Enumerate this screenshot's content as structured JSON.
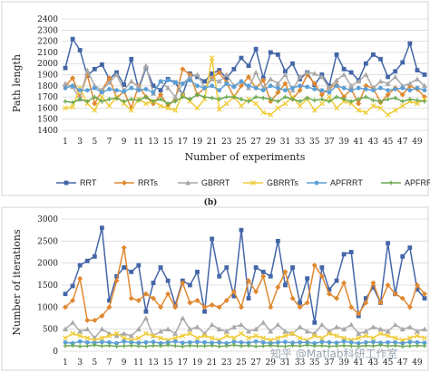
{
  "figure": {
    "caption": "(b)",
    "watermark": "知乎 @Matlab科研工作室"
  },
  "legend": {
    "entries": [
      {
        "name": "RRT",
        "color": "#4466a8",
        "marker": "square"
      },
      {
        "name": "RRTs",
        "color": "#e08830",
        "marker": "diamond"
      },
      {
        "name": "GBRRT",
        "color": "#a9a9a9",
        "marker": "triangle"
      },
      {
        "name": "GBRRTs",
        "color": "#f0cc3a",
        "marker": "x"
      },
      {
        "name": "APFRRT",
        "color": "#5b9fd6",
        "marker": "circle"
      },
      {
        "name": "APFRRTs",
        "color": "#6aa84f",
        "marker": "plus"
      }
    ]
  },
  "chart_data": [
    {
      "type": "line",
      "ylabel": "Path length",
      "xlabel": "Number of experiments",
      "ylim": [
        1400,
        2400
      ],
      "yticks": [
        1400,
        1500,
        1600,
        1700,
        1800,
        1900,
        2000,
        2100,
        2200,
        2300,
        2400
      ],
      "xlim": [
        1,
        50
      ],
      "xticks": [
        1,
        3,
        5,
        7,
        9,
        11,
        13,
        15,
        17,
        19,
        21,
        23,
        25,
        27,
        29,
        31,
        33,
        35,
        37,
        39,
        41,
        43,
        45,
        47,
        49
      ],
      "grid": "horizontal",
      "series": [
        {
          "name": "RRT",
          "values": [
            1960,
            2220,
            2120,
            1890,
            1950,
            1990,
            1860,
            1920,
            1810,
            2040,
            1770,
            1960,
            1800,
            1760,
            1860,
            1830,
            1720,
            1910,
            1880,
            1840,
            1910,
            1940,
            1870,
            1950,
            2050,
            1980,
            2130,
            1870,
            2100,
            2080,
            1930,
            2000,
            1860,
            1920,
            1810,
            1900,
            1800,
            2080,
            1950,
            1920,
            1850,
            2000,
            2080,
            2040,
            1880,
            1930,
            2010,
            2180,
            1940,
            1900
          ]
        },
        {
          "name": "RRTs",
          "values": [
            1800,
            1870,
            1700,
            1900,
            1640,
            1760,
            1870,
            1690,
            1750,
            1600,
            1800,
            1700,
            1640,
            1720,
            1620,
            1680,
            1950,
            1900,
            1720,
            1780,
            1870,
            1920,
            1830,
            1700,
            1800,
            1880,
            1780,
            1850,
            1660,
            1740,
            1820,
            1680,
            1760,
            1900,
            1820,
            1720,
            1780,
            1810,
            1700,
            1770,
            1640,
            1800,
            1780,
            1650,
            1720,
            1780,
            1720,
            1800,
            1770,
            1700
          ]
        },
        {
          "name": "GBRRT",
          "values": [
            1820,
            1790,
            1680,
            1940,
            1800,
            1760,
            1830,
            1900,
            1760,
            1840,
            1790,
            1980,
            1730,
            1840,
            1780,
            1700,
            1820,
            1880,
            1900,
            1780,
            1860,
            1840,
            1900,
            1800,
            1840,
            1780,
            1920,
            1780,
            1860,
            1820,
            1900,
            1760,
            1880,
            1920,
            1910,
            1880,
            1780,
            1850,
            1900,
            1800,
            1840,
            1900,
            1780,
            1840,
            1820,
            1880,
            1800,
            1820,
            1860,
            1800
          ]
        },
        {
          "name": "GBRRTs",
          "values": [
            1600,
            1610,
            1780,
            1640,
            1580,
            1700,
            1620,
            1700,
            1640,
            1580,
            1680,
            1640,
            1660,
            1620,
            1600,
            1580,
            1720,
            1660,
            1600,
            1680,
            2050,
            1590,
            1640,
            1700,
            1620,
            1680,
            1640,
            1560,
            1540,
            1600,
            1640,
            1700,
            1620,
            1680,
            1580,
            1640,
            1700,
            1600,
            1660,
            1640,
            1580,
            1560,
            1620,
            1600,
            1540,
            1580,
            1620,
            1660,
            1640,
            1680
          ]
        },
        {
          "name": "APFRRT",
          "values": [
            1780,
            1800,
            1760,
            1760,
            1780,
            1740,
            1770,
            1760,
            1750,
            1780,
            1760,
            1770,
            1740,
            1840,
            1850,
            1830,
            1820,
            1850,
            1800,
            1780,
            1800,
            1760,
            1820,
            1790,
            1840,
            1800,
            1780,
            1760,
            1800,
            1780,
            1760,
            1780,
            1800,
            1790,
            1770,
            1760,
            1740,
            1800,
            1780,
            1760,
            1780,
            1770,
            1760,
            1780,
            1760,
            1770,
            1780,
            1760,
            1780,
            1760
          ]
        },
        {
          "name": "APFRRTs",
          "values": [
            1660,
            1650,
            1680,
            1660,
            1700,
            1660,
            1680,
            1690,
            1660,
            1680,
            1670,
            1700,
            1660,
            1680,
            1640,
            1660,
            1700,
            1680,
            1720,
            1700,
            1690,
            1680,
            1700,
            1700,
            1680,
            1660,
            1700,
            1690,
            1680,
            1660,
            1700,
            1680,
            1660,
            1690,
            1670,
            1680,
            1660,
            1700,
            1680,
            1660,
            1680,
            1700,
            1670,
            1660,
            1680,
            1690,
            1660,
            1680,
            1670,
            1660
          ]
        }
      ]
    },
    {
      "type": "line",
      "ylabel": "Number of iterations",
      "xlabel": "",
      "ylim": [
        0,
        3000
      ],
      "yticks": [
        0,
        500,
        1000,
        1500,
        2000,
        2500,
        3000
      ],
      "xlim": [
        1,
        50
      ],
      "xticks": [
        1,
        3,
        5,
        7,
        9,
        11,
        13,
        15,
        17,
        19,
        21,
        23,
        25,
        27,
        29,
        31,
        33,
        35,
        37,
        39,
        41,
        43,
        45,
        47,
        49
      ],
      "grid": "horizontal",
      "series": [
        {
          "name": "RRT",
          "values": [
            1300,
            1480,
            1950,
            2050,
            2150,
            2800,
            1150,
            1700,
            1900,
            1800,
            1950,
            900,
            1550,
            1900,
            1600,
            1050,
            1600,
            1500,
            1800,
            900,
            2550,
            1700,
            1900,
            1250,
            2750,
            1200,
            1900,
            1800,
            1700,
            2500,
            1500,
            1900,
            1100,
            1650,
            650,
            1900,
            1400,
            1600,
            2200,
            2250,
            800,
            1200,
            1450,
            1100,
            2450,
            1300,
            2150,
            2350,
            1400,
            1200
          ]
        },
        {
          "name": "RRTs",
          "values": [
            1000,
            1150,
            1650,
            700,
            700,
            800,
            1000,
            1600,
            2350,
            1200,
            1150,
            1300,
            1200,
            1000,
            1300,
            1000,
            1550,
            1100,
            1150,
            1000,
            1050,
            1000,
            1150,
            1350,
            1000,
            1600,
            1350,
            1700,
            1000,
            1450,
            1800,
            1200,
            1000,
            1100,
            1950,
            1700,
            1300,
            1200,
            1550,
            1000,
            850,
            1100,
            1550,
            1100,
            1500,
            1300,
            1200,
            1000,
            1500,
            1300
          ]
        },
        {
          "name": "GBRRT",
          "values": [
            500,
            650,
            450,
            500,
            300,
            500,
            400,
            350,
            400,
            350,
            500,
            750,
            350,
            450,
            500,
            400,
            750,
            500,
            550,
            400,
            600,
            500,
            450,
            550,
            600,
            450,
            500,
            650,
            450,
            600,
            450,
            400,
            550,
            450,
            400,
            600,
            450,
            550,
            500,
            600,
            400,
            450,
            550,
            500,
            450,
            600,
            500,
            550,
            450,
            500
          ]
        },
        {
          "name": "GBRRTs",
          "values": [
            300,
            400,
            350,
            300,
            250,
            300,
            350,
            400,
            300,
            250,
            300,
            400,
            350,
            300,
            250,
            300,
            350,
            400,
            300,
            350,
            300,
            250,
            350,
            300,
            400,
            300,
            350,
            300,
            250,
            300,
            350,
            400,
            300,
            250,
            350,
            300,
            400,
            350,
            300,
            250,
            300,
            350,
            300,
            400,
            350,
            300,
            250,
            300,
            350,
            300
          ]
        },
        {
          "name": "APFRRT",
          "values": [
            200,
            180,
            220,
            200,
            190,
            210,
            200,
            180,
            220,
            200,
            190,
            200,
            210,
            180,
            200,
            220,
            190,
            200,
            210,
            200,
            190,
            200,
            180,
            210,
            200,
            190,
            220,
            200,
            180,
            200,
            210,
            190,
            200,
            200,
            180,
            210,
            200,
            190,
            220,
            200,
            180,
            200,
            210,
            190,
            200,
            200,
            180,
            210,
            200,
            190
          ]
        },
        {
          "name": "APFRRTs",
          "values": [
            120,
            130,
            110,
            120,
            140,
            120,
            130,
            110,
            120,
            130,
            120,
            110,
            130,
            120,
            140,
            120,
            110,
            130,
            120,
            120,
            130,
            110,
            120,
            140,
            120,
            130,
            110,
            120,
            130,
            120,
            110,
            130,
            120,
            140,
            120,
            130,
            110,
            120,
            130,
            120,
            110,
            130,
            120,
            140,
            120,
            130,
            110,
            120,
            130,
            120
          ]
        }
      ]
    }
  ]
}
